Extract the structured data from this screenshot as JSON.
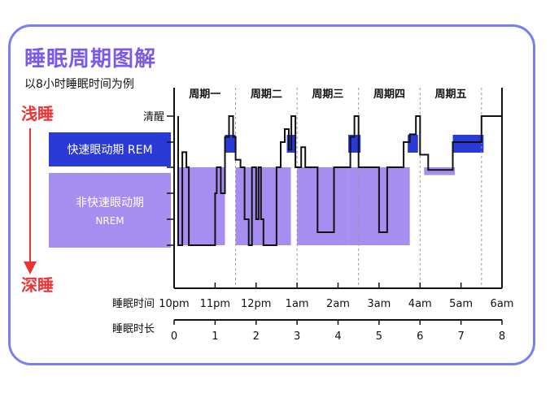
{
  "title": "睡眠周期图解",
  "subtitle": "以8小时睡眠时间为例",
  "arrow_top_label": "浅睡",
  "arrow_bottom_label": "深睡",
  "colors": {
    "rem": "#2a3ad6",
    "nrem": "#a68df0",
    "frame": "#7a7ff0",
    "accent": "#ee3333",
    "title": "#7c5ae8"
  },
  "chart_data": {
    "type": "line",
    "title": "睡眠周期图解",
    "subtitle": "以8小时睡眠时间为例",
    "stages": [
      "清醒",
      "快速眼动期 REM",
      "非快速眼动期 NREM"
    ],
    "stage_labels": {
      "wake": "清醒",
      "rem": "快速眼动期 REM",
      "nrem_line1": "非快速眼动期",
      "nrem_line2": "NREM"
    },
    "cycles": [
      "周期一",
      "周期二",
      "周期三",
      "周期四",
      "周期五"
    ],
    "cycle_bounds_hours": [
      0,
      1.5,
      3,
      4.5,
      6,
      7.5,
      8
    ],
    "xlabel_time": "睡眠时间",
    "xlabel_duration": "睡眠时长",
    "time_ticks": [
      {
        "hours": 0,
        "label": "10pm"
      },
      {
        "hours": 1,
        "label": "11pm"
      },
      {
        "hours": 2,
        "label": "12pm"
      },
      {
        "hours": 3,
        "label": "1am"
      },
      {
        "hours": 4,
        "label": "2am"
      },
      {
        "hours": 5,
        "label": "3am"
      },
      {
        "hours": 6,
        "label": "4am"
      },
      {
        "hours": 7,
        "label": "5am"
      },
      {
        "hours": 8,
        "label": "6am"
      }
    ],
    "duration_ticks": [
      "0",
      "1",
      "2",
      "3",
      "4",
      "5",
      "6",
      "7",
      "8"
    ],
    "xlim": [
      0,
      8
    ],
    "rem_blocks": [
      [
        1.24,
        1.5
      ],
      [
        2.75,
        2.95
      ],
      [
        4.25,
        4.55
      ],
      [
        5.7,
        5.95
      ],
      [
        6.8,
        7.55
      ]
    ],
    "nrem_blocks": [
      [
        0.1,
        1.24,
        5
      ],
      [
        1.5,
        2.85,
        5
      ],
      [
        3.0,
        4.25,
        5
      ],
      [
        4.25,
        5.75,
        5
      ],
      [
        6.1,
        6.85,
        2.3
      ]
    ],
    "hypnogram": [
      [
        0.1,
        0
      ],
      [
        0.1,
        5
      ],
      [
        0.2,
        5
      ],
      [
        0.2,
        1.4
      ],
      [
        0.3,
        1.4
      ],
      [
        0.3,
        2
      ],
      [
        0.36,
        2
      ],
      [
        0.36,
        5
      ],
      [
        1.0,
        5
      ],
      [
        1.0,
        3
      ],
      [
        1.04,
        3
      ],
      [
        1.04,
        2
      ],
      [
        1.14,
        2
      ],
      [
        1.14,
        3
      ],
      [
        1.24,
        3
      ],
      [
        1.24,
        0.8
      ],
      [
        1.34,
        0.8
      ],
      [
        1.34,
        0
      ],
      [
        1.44,
        0
      ],
      [
        1.44,
        0.8
      ],
      [
        1.5,
        0.8
      ],
      [
        1.5,
        1.7
      ],
      [
        1.62,
        1.7
      ],
      [
        1.62,
        2
      ],
      [
        1.72,
        2
      ],
      [
        1.72,
        4
      ],
      [
        1.82,
        4
      ],
      [
        1.82,
        5
      ],
      [
        1.9,
        5
      ],
      [
        1.9,
        2
      ],
      [
        2.0,
        2
      ],
      [
        2.0,
        4
      ],
      [
        2.06,
        4
      ],
      [
        2.06,
        2
      ],
      [
        2.12,
        2
      ],
      [
        2.12,
        4
      ],
      [
        2.18,
        4
      ],
      [
        2.18,
        5
      ],
      [
        2.5,
        5
      ],
      [
        2.5,
        2
      ],
      [
        2.6,
        2
      ],
      [
        2.6,
        1
      ],
      [
        2.7,
        1
      ],
      [
        2.7,
        0.5
      ],
      [
        2.8,
        0.5
      ],
      [
        2.8,
        1.3
      ],
      [
        2.86,
        1.3
      ],
      [
        2.86,
        0
      ],
      [
        2.96,
        0
      ],
      [
        2.96,
        2
      ],
      [
        3.1,
        2
      ],
      [
        3.1,
        1.2
      ],
      [
        3.2,
        1.2
      ],
      [
        3.2,
        2
      ],
      [
        3.5,
        2
      ],
      [
        3.5,
        4.5
      ],
      [
        3.9,
        4.5
      ],
      [
        3.9,
        2
      ],
      [
        4.3,
        2
      ],
      [
        4.3,
        0.8
      ],
      [
        4.4,
        0.8
      ],
      [
        4.4,
        0
      ],
      [
        4.5,
        0
      ],
      [
        4.5,
        2
      ],
      [
        5.0,
        2
      ],
      [
        5.0,
        4.5
      ],
      [
        5.2,
        4.5
      ],
      [
        5.2,
        2
      ],
      [
        5.6,
        2
      ],
      [
        5.6,
        1
      ],
      [
        5.75,
        1
      ],
      [
        5.75,
        0.7
      ],
      [
        5.9,
        0.7
      ],
      [
        5.9,
        0
      ],
      [
        6.0,
        0
      ],
      [
        6.0,
        1.5
      ],
      [
        6.2,
        1.5
      ],
      [
        6.2,
        2.1
      ],
      [
        6.8,
        2.1
      ],
      [
        6.8,
        1
      ],
      [
        7.5,
        1
      ],
      [
        7.5,
        0
      ],
      [
        8.0,
        0
      ]
    ]
  }
}
